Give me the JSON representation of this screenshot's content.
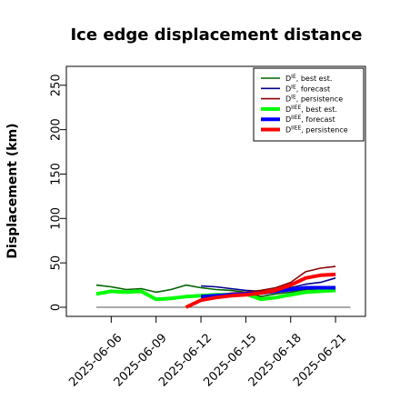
{
  "chart_data": {
    "type": "line",
    "title": "Ice edge displacement distance",
    "xlabel": "",
    "ylabel": "Displacement (km)",
    "ylim": [
      0,
      260
    ],
    "yticks": [
      0,
      50,
      100,
      150,
      200,
      250
    ],
    "x_axis_type": "date",
    "xlim": [
      "2025-06-03",
      "2025-06-23"
    ],
    "xticks": [
      "2025-06-06",
      "2025-06-09",
      "2025-06-12",
      "2025-06-15",
      "2025-06-18",
      "2025-06-21"
    ],
    "highlight_tick": "2025-06-12",
    "highlight_color": "#228B22",
    "legend_position": "top-right",
    "reference_line": {
      "value": 0,
      "color": "#555555",
      "x_range": [
        "2025-06-05",
        "2025-06-22"
      ]
    },
    "series": [
      {
        "name": "D^IE, best est.",
        "base": "D",
        "sup": "IE",
        "suffix": ", best est.",
        "color": "#006400",
        "thick": false,
        "x": [
          "2025-06-05",
          "2025-06-06",
          "2025-06-07",
          "2025-06-08",
          "2025-06-09",
          "2025-06-10",
          "2025-06-11",
          "2025-06-12",
          "2025-06-13",
          "2025-06-14",
          "2025-06-15",
          "2025-06-16",
          "2025-06-17",
          "2025-06-18",
          "2025-06-19",
          "2025-06-20",
          "2025-06-21"
        ],
        "y": [
          25,
          23,
          20,
          21,
          17,
          20,
          25,
          22,
          20,
          19,
          17,
          12,
          15,
          17,
          20,
          20,
          21
        ]
      },
      {
        "name": "D^IE, forecast",
        "base": "D",
        "sup": "IE",
        "suffix": ", forecast",
        "color": "#00008B",
        "thick": false,
        "x": [
          "2025-06-12",
          "2025-06-13",
          "2025-06-14",
          "2025-06-15",
          "2025-06-16",
          "2025-06-17",
          "2025-06-18",
          "2025-06-19",
          "2025-06-20",
          "2025-06-21"
        ],
        "y": [
          24,
          23,
          21,
          19,
          18,
          19,
          22,
          26,
          28,
          33
        ]
      },
      {
        "name": "D^IE, persistence",
        "base": "D",
        "sup": "IE",
        "suffix": ", persistence",
        "color": "#8B0000",
        "thick": false,
        "x": [
          "2025-06-12",
          "2025-06-13",
          "2025-06-14",
          "2025-06-15",
          "2025-06-16",
          "2025-06-17",
          "2025-06-18",
          "2025-06-19",
          "2025-06-20",
          "2025-06-21"
        ],
        "y": [
          12,
          14,
          16,
          17,
          19,
          22,
          28,
          40,
          44,
          46
        ]
      },
      {
        "name": "D^IIEE, best est.",
        "base": "D",
        "sup": "IIEE",
        "suffix": ", best est.",
        "color": "#00FF00",
        "thick": true,
        "x": [
          "2025-06-05",
          "2025-06-06",
          "2025-06-07",
          "2025-06-08",
          "2025-06-09",
          "2025-06-10",
          "2025-06-11",
          "2025-06-12",
          "2025-06-13",
          "2025-06-14",
          "2025-06-15",
          "2025-06-16",
          "2025-06-17",
          "2025-06-18",
          "2025-06-19",
          "2025-06-20",
          "2025-06-21"
        ],
        "y": [
          15,
          18,
          17,
          18,
          9,
          10,
          12,
          13,
          14,
          14,
          15,
          9,
          11,
          14,
          17,
          18,
          19
        ]
      },
      {
        "name": "D^IIEE, forecast",
        "base": "D",
        "sup": "IIEE",
        "suffix": ", forecast",
        "color": "#0000FF",
        "thick": true,
        "x": [
          "2025-06-12",
          "2025-06-13",
          "2025-06-14",
          "2025-06-15",
          "2025-06-16",
          "2025-06-17",
          "2025-06-18",
          "2025-06-19",
          "2025-06-20",
          "2025-06-21"
        ],
        "y": [
          12,
          13,
          14,
          15,
          16,
          18,
          20,
          22,
          22,
          22
        ]
      },
      {
        "name": "D^IIEE, persistence",
        "base": "D",
        "sup": "IIEE",
        "suffix": ", persistence",
        "color": "#FF0000",
        "thick": true,
        "x": [
          "2025-06-11",
          "2025-06-12",
          "2025-06-13",
          "2025-06-14",
          "2025-06-15",
          "2025-06-16",
          "2025-06-17",
          "2025-06-18",
          "2025-06-19",
          "2025-06-20",
          "2025-06-21"
        ],
        "y": [
          0,
          8,
          11,
          13,
          14,
          16,
          19,
          25,
          33,
          36,
          37
        ]
      }
    ]
  }
}
